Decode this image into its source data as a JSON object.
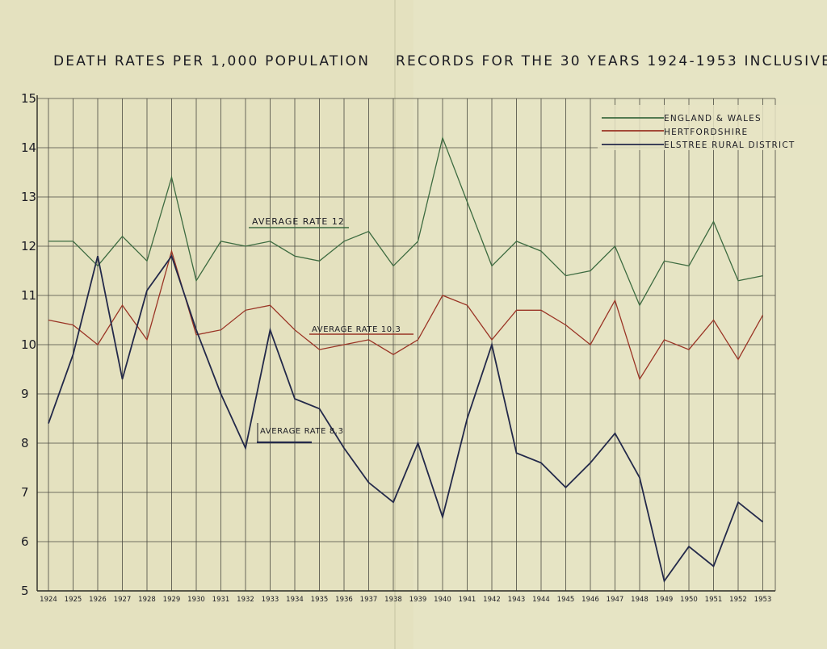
{
  "chart_data": {
    "type": "line",
    "title": "DEATH RATES PER 1,000 POPULATION",
    "subtitle": "RECORDS FOR THE 30 YEARS 1924-1953 INCLUSIVE",
    "xlabel": "",
    "ylabel": "",
    "ylim": [
      5,
      15
    ],
    "yticks": [
      "5",
      "6",
      "7",
      "8",
      "9",
      "10",
      "11",
      "12",
      "13",
      "14",
      "15"
    ],
    "categories": [
      "1924",
      "1925",
      "1926",
      "1927",
      "1928",
      "1929",
      "1930",
      "1931",
      "1932",
      "1933",
      "1934",
      "1935",
      "1936",
      "1937",
      "1938",
      "1939",
      "1940",
      "1941",
      "1942",
      "1943",
      "1944",
      "1945",
      "1946",
      "1947",
      "1948",
      "1949",
      "1950",
      "1951",
      "1952",
      "1953"
    ],
    "grid": true,
    "legend_position": "top-right",
    "series": [
      {
        "name": "ENGLAND & WALES",
        "color": "#3d6b40",
        "values": [
          12.1,
          12.1,
          11.6,
          12.2,
          11.7,
          13.4,
          11.3,
          12.1,
          12.0,
          12.1,
          11.8,
          11.7,
          12.1,
          12.3,
          11.6,
          12.1,
          14.2,
          12.9,
          11.6,
          12.1,
          11.9,
          11.4,
          11.5,
          12.0,
          10.8,
          11.7,
          11.6,
          12.5,
          11.3,
          11.4
        ]
      },
      {
        "name": "HERTFORDSHIRE",
        "color": "#9a3425",
        "values": [
          10.5,
          10.4,
          10.0,
          10.8,
          10.1,
          11.9,
          10.2,
          10.3,
          10.7,
          10.8,
          10.3,
          9.9,
          10.0,
          10.1,
          9.8,
          10.1,
          11.0,
          10.8,
          10.1,
          10.7,
          10.7,
          10.4,
          10.0,
          10.9,
          9.3,
          10.1,
          9.9,
          10.5,
          9.7,
          10.6
        ]
      },
      {
        "name": "ELSTREE RURAL DISTRICT",
        "color": "#23294a",
        "values": [
          8.4,
          9.8,
          11.8,
          9.3,
          11.1,
          11.8,
          10.3,
          9.0,
          7.9,
          10.3,
          8.9,
          8.7,
          7.9,
          7.2,
          6.8,
          8.0,
          6.5,
          8.5,
          10.0,
          7.8,
          7.6,
          7.1,
          7.6,
          8.2,
          7.3,
          5.2,
          5.9,
          5.5,
          6.8,
          6.4
        ]
      }
    ],
    "annotations": [
      {
        "text": "AVERAGE RATE 12"
      },
      {
        "text": "AVERAGE RATE 10.3"
      },
      {
        "text": "AVERAGE RATE 8.3"
      }
    ]
  }
}
